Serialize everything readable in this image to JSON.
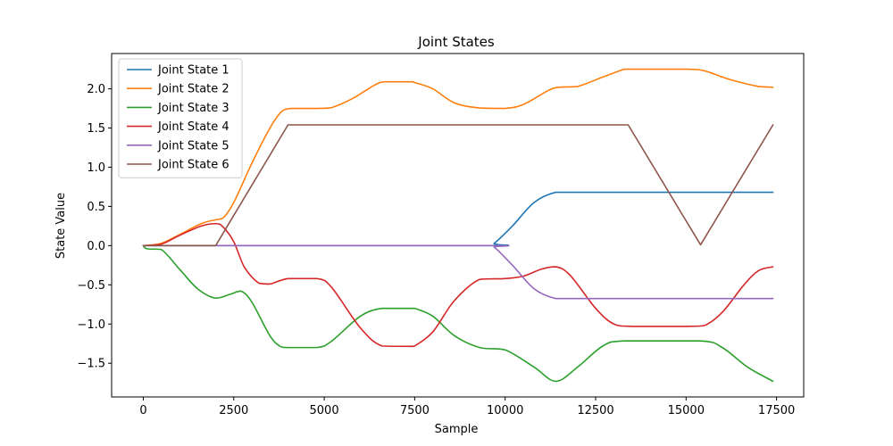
{
  "chart_data": {
    "type": "line",
    "title": "Joint States",
    "xlabel": "Sample",
    "ylabel": "State Value",
    "xlim": [
      -875,
      18250
    ],
    "ylim": [
      -1.93,
      2.45
    ],
    "xticks": [
      0,
      2500,
      5000,
      7500,
      10000,
      12500,
      15000,
      17500
    ],
    "yticks": [
      -1.5,
      -1.0,
      -0.5,
      0.0,
      0.5,
      1.0,
      1.5,
      2.0
    ],
    "xtick_labels": [
      "0",
      "2500",
      "5000",
      "7500",
      "10000",
      "12500",
      "15000",
      "17500"
    ],
    "ytick_labels": [
      "−1.5",
      "−1.0",
      "−0.5",
      "0.0",
      "0.5",
      "1.0",
      "1.5",
      "2.0"
    ],
    "grid": false,
    "legend_position": "top-left",
    "series": [
      {
        "name": "Joint State 1",
        "color": "#1f77b4",
        "x": [
          0,
          2000,
          9500,
          9700,
          10200,
          10800,
          11400,
          12000,
          15000,
          17400
        ],
        "y": [
          0,
          0,
          0,
          0.03,
          0.25,
          0.55,
          0.68,
          0.68,
          0.68,
          0.68
        ]
      },
      {
        "name": "Joint State 2",
        "color": "#ff7f0e",
        "x": [
          0,
          500,
          1000,
          1600,
          2000,
          2200,
          2500,
          3000,
          3500,
          3800,
          4000,
          4200,
          4800,
          5200,
          5800,
          6400,
          6700,
          7400,
          7500,
          8000,
          8600,
          9300,
          10000,
          10500,
          11200,
          11500,
          12000,
          12700,
          13300,
          13500,
          15000,
          15500,
          16200,
          17000,
          17400
        ],
        "y": [
          0,
          0.03,
          0.14,
          0.28,
          0.33,
          0.35,
          0.55,
          1.05,
          1.5,
          1.7,
          1.745,
          1.75,
          1.75,
          1.76,
          1.88,
          2.05,
          2.09,
          2.09,
          2.08,
          2.0,
          1.82,
          1.755,
          1.75,
          1.8,
          1.98,
          2.02,
          2.03,
          2.15,
          2.25,
          2.25,
          2.25,
          2.23,
          2.12,
          2.03,
          2.02
        ]
      },
      {
        "name": "Joint State 3",
        "color": "#2ca02c",
        "x": [
          0,
          100,
          500,
          1000,
          1500,
          2000,
          2400,
          2700,
          3000,
          3500,
          3800,
          4000,
          4800,
          5200,
          6000,
          6600,
          7400,
          7500,
          8000,
          8600,
          9300,
          10000,
          10800,
          11400,
          12000,
          12700,
          13300,
          15400,
          16000,
          16700,
          17400
        ],
        "y": [
          0,
          -0.04,
          -0.05,
          -0.3,
          -0.55,
          -0.67,
          -0.62,
          -0.58,
          -0.72,
          -1.15,
          -1.29,
          -1.3,
          -1.3,
          -1.22,
          -0.9,
          -0.8,
          -0.8,
          -0.8,
          -0.9,
          -1.15,
          -1.3,
          -1.33,
          -1.55,
          -1.73,
          -1.55,
          -1.28,
          -1.215,
          -1.215,
          -1.3,
          -1.55,
          -1.73
        ]
      },
      {
        "name": "Joint State 4",
        "color": "#d62728",
        "x": [
          0,
          500,
          1000,
          1600,
          2000,
          2200,
          2500,
          2800,
          3200,
          3500,
          4000,
          4800,
          5200,
          6000,
          6600,
          7400,
          7500,
          8000,
          8600,
          9300,
          10000,
          10500,
          11000,
          11400,
          11800,
          12500,
          13000,
          13500,
          15000,
          15500,
          16000,
          16600,
          17000,
          17400
        ],
        "y": [
          0,
          0.02,
          0.13,
          0.25,
          0.28,
          0.24,
          0.05,
          -0.28,
          -0.48,
          -0.49,
          -0.42,
          -0.42,
          -0.53,
          -1.05,
          -1.28,
          -1.285,
          -1.28,
          -1.1,
          -0.7,
          -0.43,
          -0.42,
          -0.39,
          -0.3,
          -0.27,
          -0.38,
          -0.8,
          -1.0,
          -1.03,
          -1.03,
          -1.02,
          -0.85,
          -0.5,
          -0.32,
          -0.27
        ]
      },
      {
        "name": "Joint State 5",
        "color": "#9467bd",
        "x": [
          0,
          2000,
          9500,
          9700,
          10200,
          10800,
          11400,
          12000,
          15000,
          17400
        ],
        "y": [
          0,
          0,
          0,
          -0.02,
          -0.25,
          -0.55,
          -0.675,
          -0.675,
          -0.675,
          -0.675
        ]
      },
      {
        "name": "Joint State 6",
        "color": "#8c564b",
        "x": [
          0,
          2000,
          4000,
          13400,
          15400,
          17400
        ],
        "y": [
          0,
          0,
          1.54,
          1.54,
          0.01,
          1.54
        ]
      }
    ]
  }
}
